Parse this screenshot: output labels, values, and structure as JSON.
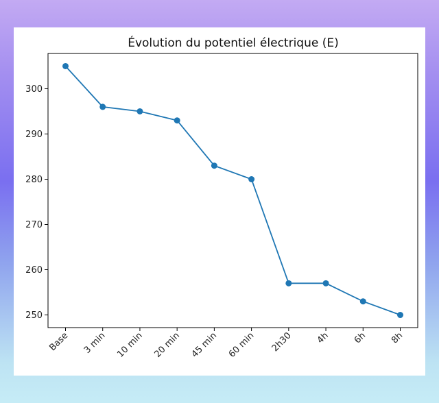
{
  "chart_data": {
    "type": "line",
    "title": "Évolution du potentiel électrique (E)",
    "xlabel": "",
    "ylabel": "",
    "categories": [
      "Base",
      "3 min",
      "10 min",
      "20 min",
      "45 min",
      "60 min",
      "2h30",
      "4h",
      "6h",
      "8h"
    ],
    "series": [
      {
        "values": [
          305,
          296,
          295,
          293,
          283,
          280,
          257,
          257,
          253,
          250
        ],
        "color": "#1f77b4"
      }
    ],
    "ylim": [
      247.2,
      307.8
    ],
    "yticks": [
      250,
      260,
      270,
      280,
      290,
      300
    ],
    "grid": false,
    "marker": "circle"
  }
}
